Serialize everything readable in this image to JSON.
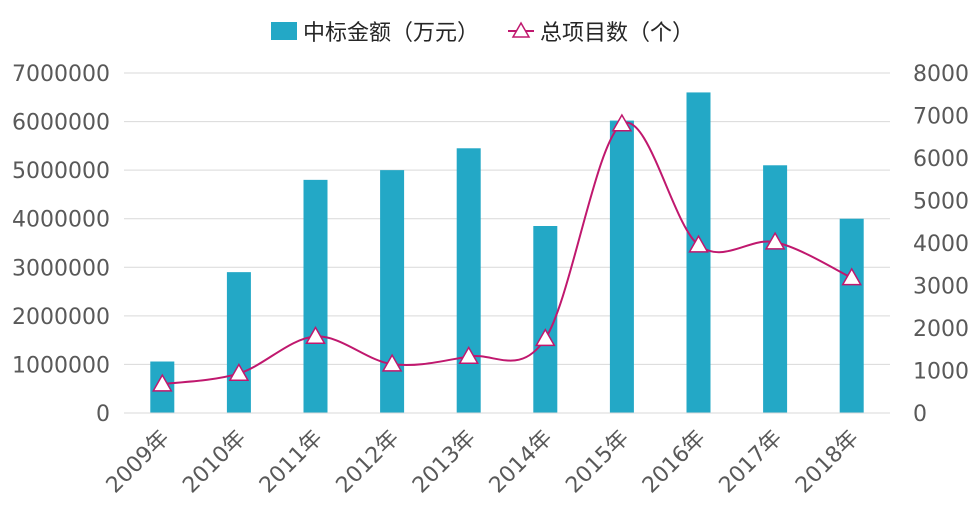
{
  "chart_data": {
    "type": "bar",
    "categories": [
      "2009年",
      "2010年",
      "2011年",
      "2012年",
      "2013年",
      "2014年",
      "2015年",
      "2016年",
      "2017年",
      "2018年"
    ],
    "series": [
      {
        "name": "中标金额（万元）",
        "type": "bar",
        "axis": "left",
        "color": "#23A8C6",
        "values": [
          1060000,
          2900000,
          4800000,
          5000000,
          5450000,
          3850000,
          6020000,
          6600000,
          5100000,
          4000000
        ]
      },
      {
        "name": "总项目数（个）",
        "type": "line",
        "axis": "right",
        "color": "#C0186E",
        "marker": "triangle",
        "smooth": true,
        "values": [
          680,
          930,
          1800,
          1150,
          1330,
          1750,
          6800,
          3950,
          4020,
          3180
        ]
      }
    ],
    "y_left": {
      "min": 0,
      "max": 7000000,
      "ticks": [
        "0",
        "1000000",
        "2000000",
        "3000000",
        "4000000",
        "5000000",
        "6000000",
        "7000000"
      ]
    },
    "y_right": {
      "min": 0,
      "max": 8000,
      "ticks": [
        "0",
        "1000",
        "2000",
        "3000",
        "4000",
        "5000",
        "6000",
        "7000",
        "8000"
      ]
    },
    "grid": true,
    "legend_position": "top-center"
  }
}
